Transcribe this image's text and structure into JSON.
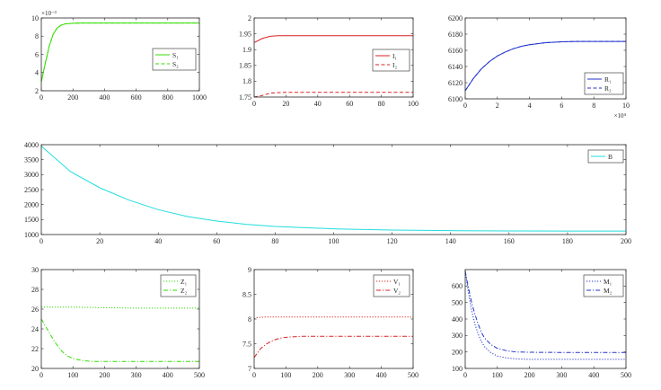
{
  "chart_data": [
    {
      "id": "s",
      "type": "line",
      "xlim": [
        0,
        1000
      ],
      "ylim": [
        2,
        10
      ],
      "xticks": [
        0,
        200,
        400,
        600,
        800,
        1000
      ],
      "yticks": [
        2,
        4,
        6,
        8,
        10
      ],
      "xtick_labels": [
        "0",
        "200",
        "400",
        "600",
        "800",
        "1000"
      ],
      "ytick_labels": [
        "2",
        "4",
        "6",
        "8",
        "10"
      ],
      "y_multiplier": "×10⁻³",
      "legend": "right",
      "series": [
        {
          "name": "S₁",
          "color": "#33dd00",
          "dash": "solid",
          "x": [
            0,
            25,
            50,
            75,
            100,
            125,
            150,
            200,
            250,
            300,
            400,
            600,
            800,
            1000
          ],
          "y": [
            3.0,
            5.0,
            6.9,
            8.2,
            8.9,
            9.2,
            9.35,
            9.42,
            9.44,
            9.45,
            9.45,
            9.45,
            9.45,
            9.45
          ]
        },
        {
          "name": "S₂",
          "color": "#33dd00",
          "dash": "dashed",
          "x": [
            0,
            25,
            50,
            75,
            100,
            125,
            150,
            200,
            250,
            300,
            400,
            600,
            800,
            1000
          ],
          "y": [
            3.0,
            5.0,
            6.9,
            8.2,
            8.9,
            9.2,
            9.35,
            9.42,
            9.44,
            9.45,
            9.45,
            9.45,
            9.45,
            9.45
          ]
        }
      ]
    },
    {
      "id": "i",
      "type": "line",
      "xlim": [
        0,
        100
      ],
      "ylim": [
        1.75,
        2.0
      ],
      "xticks": [
        0,
        20,
        40,
        60,
        80,
        100
      ],
      "yticks": [
        1.75,
        1.8,
        1.85,
        1.9,
        1.95,
        2.0
      ],
      "xtick_labels": [
        "0",
        "20",
        "40",
        "60",
        "80",
        "100"
      ],
      "ytick_labels": [
        "1.75",
        "1.8",
        "1.85",
        "1.9",
        "1.95",
        "2"
      ],
      "legend": "right",
      "series": [
        {
          "name": "I₁",
          "color": "#dd2222",
          "dash": "solid",
          "x": [
            0,
            5,
            10,
            15,
            20,
            30,
            50,
            100
          ],
          "y": [
            1.922,
            1.935,
            1.942,
            1.944,
            1.944,
            1.944,
            1.944,
            1.944
          ]
        },
        {
          "name": "I₂",
          "color": "#dd2222",
          "dash": "dashed",
          "x": [
            0,
            5,
            10,
            15,
            20,
            30,
            50,
            100
          ],
          "y": [
            1.75,
            1.755,
            1.762,
            1.764,
            1.765,
            1.765,
            1.765,
            1.765
          ]
        }
      ]
    },
    {
      "id": "r",
      "type": "line",
      "xlim": [
        0,
        10
      ],
      "ylim": [
        6100,
        6200
      ],
      "xticks": [
        0,
        2,
        4,
        6,
        8,
        10
      ],
      "yticks": [
        6100,
        6120,
        6140,
        6160,
        6180,
        6200
      ],
      "xtick_labels": [
        "0",
        "2",
        "4",
        "6",
        "8",
        "10"
      ],
      "ytick_labels": [
        "6100",
        "6120",
        "6140",
        "6160",
        "6180",
        "6200"
      ],
      "x_multiplier": "×10⁴",
      "legend": "right",
      "series": [
        {
          "name": "R₁",
          "color": "#2233cc",
          "dash": "solid",
          "x": [
            0,
            0.5,
            1,
            1.5,
            2,
            2.5,
            3,
            3.5,
            4,
            5,
            6,
            7,
            8,
            9,
            10
          ],
          "y": [
            6110,
            6125,
            6137,
            6146,
            6153,
            6158,
            6162,
            6165,
            6167,
            6169.5,
            6170.5,
            6171,
            6171,
            6171,
            6171
          ]
        },
        {
          "name": "R₂",
          "color": "#2233cc",
          "dash": "dashed",
          "x": [
            0,
            0.5,
            1,
            1.5,
            2,
            2.5,
            3,
            3.5,
            4,
            5,
            6,
            7,
            8,
            9,
            10
          ],
          "y": [
            6110,
            6125,
            6137,
            6146,
            6153,
            6158,
            6162,
            6165,
            6167,
            6169.5,
            6170.5,
            6171,
            6171,
            6171,
            6171
          ]
        }
      ]
    },
    {
      "id": "b",
      "type": "line",
      "xlim": [
        0,
        200
      ],
      "ylim": [
        1000,
        4000
      ],
      "xticks": [
        0,
        20,
        40,
        60,
        80,
        100,
        120,
        140,
        160,
        180,
        200
      ],
      "yticks": [
        1000,
        1500,
        2000,
        2500,
        3000,
        3500,
        4000
      ],
      "xtick_labels": [
        "0",
        "20",
        "40",
        "60",
        "80",
        "100",
        "120",
        "140",
        "160",
        "180",
        "200"
      ],
      "ytick_labels": [
        "1000",
        "1500",
        "2000",
        "2500",
        "3000",
        "3500",
        "4000"
      ],
      "legend": "top-right",
      "series": [
        {
          "name": "B",
          "color": "#22dddd",
          "dash": "solid",
          "x": [
            0,
            10,
            20,
            30,
            40,
            50,
            60,
            70,
            80,
            100,
            120,
            140,
            160,
            180,
            200
          ],
          "y": [
            3950,
            3100,
            2560,
            2150,
            1830,
            1600,
            1450,
            1340,
            1270,
            1190,
            1150,
            1130,
            1120,
            1115,
            1115
          ]
        }
      ]
    },
    {
      "id": "z",
      "type": "line",
      "xlim": [
        0,
        500
      ],
      "ylim": [
        20,
        30
      ],
      "xticks": [
        0,
        100,
        200,
        300,
        400,
        500
      ],
      "yticks": [
        20,
        22,
        24,
        26,
        28,
        30
      ],
      "xtick_labels": [
        "0",
        "100",
        "200",
        "300",
        "400",
        "500"
      ],
      "ytick_labels": [
        "20",
        "22",
        "24",
        "26",
        "28",
        "30"
      ],
      "legend": "top-right",
      "series": [
        {
          "name": "Z₁",
          "color": "#33dd00",
          "dash": "dotted",
          "x": [
            0,
            100,
            200,
            300,
            400,
            500
          ],
          "y": [
            26.2,
            26.2,
            26.15,
            26.1,
            26.1,
            26.1
          ]
        },
        {
          "name": "Z₂",
          "color": "#33dd00",
          "dash": "dashdot",
          "x": [
            0,
            20,
            40,
            60,
            80,
            100,
            130,
            160,
            200,
            300,
            400,
            500
          ],
          "y": [
            25.0,
            23.9,
            22.8,
            21.9,
            21.3,
            21.0,
            20.8,
            20.7,
            20.7,
            20.7,
            20.7,
            20.7
          ]
        }
      ]
    },
    {
      "id": "v",
      "type": "line",
      "xlim": [
        0,
        500
      ],
      "ylim": [
        7,
        9
      ],
      "xticks": [
        0,
        100,
        200,
        300,
        400,
        500
      ],
      "yticks": [
        7,
        7.5,
        8,
        8.5,
        9
      ],
      "xtick_labels": [
        "0",
        "100",
        "200",
        "300",
        "400",
        "500"
      ],
      "ytick_labels": [
        "7",
        "7.5",
        "8",
        "8.5",
        "9"
      ],
      "legend": "top-right",
      "series": [
        {
          "name": "V₁",
          "color": "#dd2222",
          "dash": "dotted",
          "x": [
            0,
            10,
            30,
            100,
            200,
            300,
            400,
            500
          ],
          "y": [
            8.0,
            8.03,
            8.04,
            8.04,
            8.04,
            8.04,
            8.04,
            8.04
          ]
        },
        {
          "name": "V₂",
          "color": "#dd2222",
          "dash": "dashdot",
          "x": [
            0,
            20,
            40,
            60,
            80,
            100,
            150,
            200,
            300,
            400,
            500
          ],
          "y": [
            7.22,
            7.4,
            7.5,
            7.57,
            7.61,
            7.63,
            7.65,
            7.65,
            7.65,
            7.65,
            7.65
          ]
        }
      ]
    },
    {
      "id": "m",
      "type": "line",
      "xlim": [
        0,
        500
      ],
      "ylim": [
        100,
        700
      ],
      "xticks": [
        0,
        100,
        200,
        300,
        400,
        500
      ],
      "yticks": [
        100,
        200,
        300,
        400,
        500,
        600
      ],
      "xtick_labels": [
        "0",
        "100",
        "200",
        "300",
        "400",
        "500"
      ],
      "ytick_labels": [
        "100",
        "200",
        "300",
        "400",
        "500",
        "600"
      ],
      "legend": "top-right",
      "series": [
        {
          "name": "M₁",
          "color": "#2233cc",
          "dash": "dotted",
          "x": [
            0,
            10,
            20,
            30,
            40,
            50,
            60,
            80,
            100,
            130,
            160,
            200,
            300,
            400,
            500
          ],
          "y": [
            690,
            560,
            450,
            370,
            310,
            265,
            232,
            195,
            175,
            163,
            158,
            155,
            155,
            155,
            155
          ]
        },
        {
          "name": "M₂",
          "color": "#2233cc",
          "dash": "dashdot",
          "x": [
            0,
            10,
            20,
            30,
            40,
            50,
            60,
            80,
            100,
            130,
            160,
            200,
            300,
            400,
            500
          ],
          "y": [
            690,
            590,
            500,
            430,
            370,
            320,
            285,
            245,
            222,
            207,
            200,
            198,
            197,
            197,
            197
          ]
        }
      ]
    }
  ]
}
